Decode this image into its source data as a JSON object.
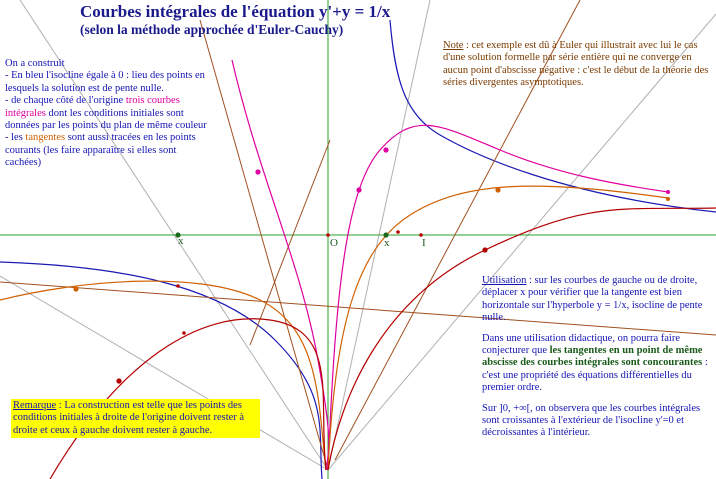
{
  "title": "Courbes intégrales de l'équation y'+y = 1/x",
  "subtitle": "(selon la méthode approchée d'Euler-Cauchy)",
  "construct": {
    "head": "On a construit",
    "l1a": "- En bleu l'isocline égale à 0 : lieu des points en lesquels la solution est de pente nulle.",
    "l2a": "- de chaque côté de l'origine ",
    "l2b": "trois courbes intégrales",
    "l2c": " dont les conditions initiales sont données par les points du plan de même couleur",
    "l3a": "- les ",
    "l3b": "tangentes",
    "l3c": " sont aussi tracées en les points courants (les faire apparaître si elles sont cachées)"
  },
  "note": {
    "label": "Note",
    "text": " : cet exemple est dû à Euler qui illustrait avec lui le cas d'une solution formelle par série entière qui ne converge en aucun point d'abscisse négative : c'est le début de la théorie des séries divergentes asymptotiques."
  },
  "usage": {
    "label": "Utilisation",
    "p1": " : sur les courbes de gauche ou de droite, déplacer x pour vérifier que la tangente est bien horizontale sur l'hyperbole y = 1/x, isocline de pente nulle.",
    "p2a": "Dans une utilisation didactique, on pourra faire conjecturer que ",
    "p2b": "les tangentes en un point de même abscisse des courbes intégrales sont concourantes",
    "p2c": " : c'est une propriété des équations différentielles du premier ordre.",
    "p3": "Sur ]0, +∞[, on observera que les courbes intégrales sont croissantes à l'extérieur de l'isocline y'=0 et décroissantes à l'intérieur."
  },
  "remark": {
    "label": "Remarque",
    "text": " : La construction est telle que les points des conditions initiales à droite de l'origine doivent rester à droite et ceux à gauche doivent rester à gauche."
  },
  "axis_labels": {
    "x_left": "x",
    "origin": "O",
    "x_right": "x",
    "unit": "I"
  },
  "colors": {
    "isocline": "#1a1ab4",
    "magenta_curve": "#e000a0",
    "orange_curve": "#d06000",
    "red_curve": "#b40000",
    "axes": "#2aa02a",
    "tangents": "#a05020",
    "construction_lines": "#a0a0a0"
  }
}
